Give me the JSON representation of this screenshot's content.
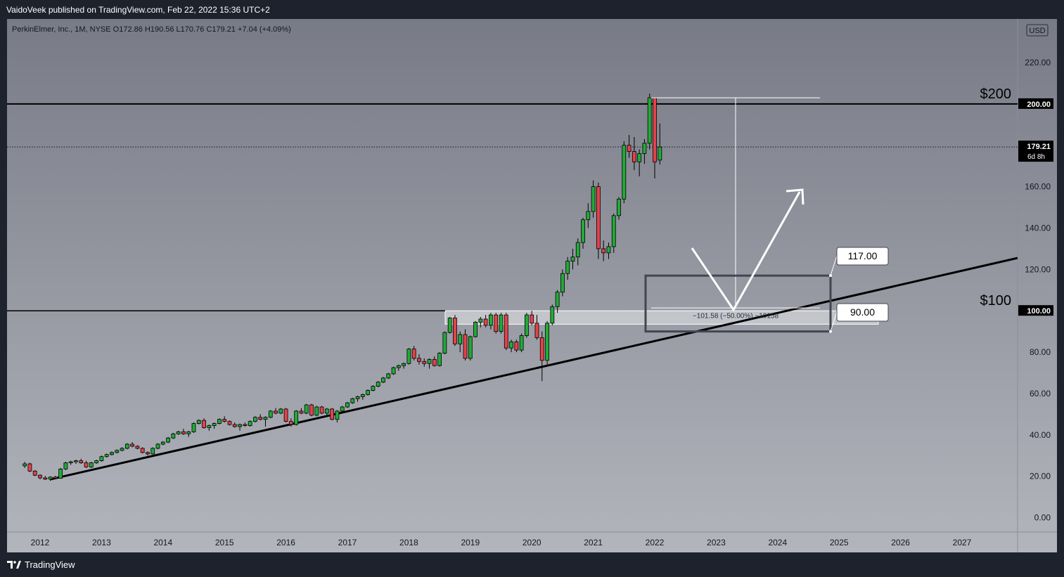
{
  "header": {
    "published": "VaidoVeek published on TradingView.com, Feb 22, 2022 15:36 UTC+2"
  },
  "footer": {
    "brand": "TradingView",
    "brand_icon": "tradingview-logo-icon"
  },
  "colors": {
    "up": "#22ab38",
    "down": "#e3434a",
    "wick": "#000000",
    "frame": "#1e222d"
  },
  "chart_data": {
    "type": "candlestick",
    "symbol_line": "PerkinElmer, Inc., 1M, NYSE  O172.86  H190.56  L170.76  C179.21  +7.04 (+4.09%)",
    "currency": "USD",
    "ylim": [
      -7,
      247
    ],
    "y_ticks": [
      "0.00",
      "20.00",
      "40.00",
      "60.00",
      "80.00",
      "100.00",
      "120.00",
      "140.00",
      "160.00",
      "180.00",
      "200.00",
      "220.00"
    ],
    "x_ticks": [
      "2012",
      "2013",
      "2014",
      "2015",
      "2016",
      "2017",
      "2018",
      "2019",
      "2020",
      "2021",
      "2022",
      "2023",
      "2024",
      "2025",
      "2026",
      "2027"
    ],
    "price_tag": {
      "price": "179.21",
      "countdown": "6d 8h"
    },
    "level_tags": [
      "200.00",
      "100.00"
    ],
    "annotations": {
      "level_200_label": "$200",
      "level_100_label": "$100",
      "box_top_label": "117.00",
      "box_bottom_label": "90.00",
      "measure_label": "−101.58 (−50.00%) −10158"
    },
    "levels": {
      "resistance": 200,
      "support": 100,
      "box_top": 117,
      "box_bottom": 90,
      "trendline_start": {
        "x": "2012-03",
        "y": 18.5
      },
      "trendline_slope_per_year": 6.8,
      "measure_from": 203,
      "measure_to": 101.4
    },
    "candles": [
      [
        "2011-10",
        25,
        27,
        24,
        26
      ],
      [
        "2011-11",
        26,
        26.5,
        22,
        22.5
      ],
      [
        "2011-12",
        22.5,
        23,
        20,
        20.5
      ],
      [
        "2012-01",
        20.5,
        21,
        18.5,
        19.2
      ],
      [
        "2012-02",
        19.2,
        20.2,
        18.2,
        18.6
      ],
      [
        "2012-03",
        18.6,
        20,
        17.8,
        19.6
      ],
      [
        "2012-04",
        19.6,
        20.2,
        18.5,
        19.0
      ],
      [
        "2012-05",
        19.0,
        24,
        18.8,
        23.5
      ],
      [
        "2012-06",
        23.5,
        27,
        23,
        26.5
      ],
      [
        "2012-07",
        26.5,
        27.5,
        25.5,
        27
      ],
      [
        "2012-08",
        27,
        28,
        26,
        27.5
      ],
      [
        "2012-09",
        27.5,
        28.5,
        26,
        26.5
      ],
      [
        "2012-10",
        26.5,
        27.5,
        24,
        24.5
      ],
      [
        "2012-11",
        24.5,
        27,
        24,
        26.5
      ],
      [
        "2012-12",
        26.5,
        28,
        26,
        27.5
      ],
      [
        "2013-01",
        27.5,
        30,
        27,
        29.5
      ],
      [
        "2013-02",
        29.5,
        31,
        29,
        30.5
      ],
      [
        "2013-03",
        30.5,
        32,
        30,
        31.5
      ],
      [
        "2013-04",
        31.5,
        33,
        31,
        32.5
      ],
      [
        "2013-05",
        32.5,
        34,
        32,
        33.5
      ],
      [
        "2013-06",
        33.5,
        36,
        33,
        35.5
      ],
      [
        "2013-07",
        35.5,
        36.5,
        34,
        34.5
      ],
      [
        "2013-08",
        34.5,
        35,
        33,
        33.5
      ],
      [
        "2013-09",
        33.5,
        34,
        31,
        31.5
      ],
      [
        "2013-10",
        31.5,
        32,
        30,
        30.8
      ],
      [
        "2013-11",
        30.8,
        34,
        30.5,
        33.5
      ],
      [
        "2013-12",
        33.5,
        36,
        33,
        35.5
      ],
      [
        "2014-01",
        35.5,
        37,
        35,
        36.5
      ],
      [
        "2014-02",
        36.5,
        39,
        36,
        38.5
      ],
      [
        "2014-03",
        38.5,
        41,
        38,
        40.5
      ],
      [
        "2014-04",
        40.5,
        42,
        40,
        41.5
      ],
      [
        "2014-05",
        41.5,
        43,
        40,
        40.5
      ],
      [
        "2014-06",
        40.5,
        42,
        39,
        41.5
      ],
      [
        "2014-07",
        41.5,
        46,
        41,
        45.5
      ],
      [
        "2014-08",
        45.5,
        47.5,
        45,
        47
      ],
      [
        "2014-09",
        47,
        48,
        43,
        43.5
      ],
      [
        "2014-10",
        43.5,
        45,
        42,
        44.5
      ],
      [
        "2014-11",
        44.5,
        46,
        43,
        45.5
      ],
      [
        "2014-12",
        45.5,
        48,
        45,
        47.5
      ],
      [
        "2015-01",
        47.5,
        49,
        46,
        46.5
      ],
      [
        "2015-02",
        46.5,
        47,
        44.5,
        45
      ],
      [
        "2015-03",
        45,
        46,
        43.5,
        44
      ],
      [
        "2015-04",
        44,
        45.5,
        42,
        45
      ],
      [
        "2015-05",
        45,
        46,
        44,
        44.5
      ],
      [
        "2015-06",
        44.5,
        47,
        44,
        46.5
      ],
      [
        "2015-07",
        46.5,
        49,
        46,
        48.5
      ],
      [
        "2015-08",
        48.5,
        50,
        47,
        47.5
      ],
      [
        "2015-09",
        47.5,
        49,
        44,
        48.5
      ],
      [
        "2015-10",
        48.5,
        52,
        48,
        51.5
      ],
      [
        "2015-11",
        51.5,
        53,
        50,
        50.5
      ],
      [
        "2015-12",
        50.5,
        53,
        50,
        52.5
      ],
      [
        "2016-01",
        52.5,
        53,
        46,
        46.5
      ],
      [
        "2016-02",
        46.5,
        48,
        44,
        45
      ],
      [
        "2016-03",
        45,
        52,
        44.5,
        51.5
      ],
      [
        "2016-04",
        51.5,
        53,
        50,
        50.5
      ],
      [
        "2016-05",
        50.5,
        55,
        50,
        54.5
      ],
      [
        "2016-06",
        54.5,
        55,
        49,
        49.5
      ],
      [
        "2016-07",
        49.5,
        54,
        49,
        53.5
      ],
      [
        "2016-08",
        53.5,
        54,
        50,
        50.5
      ],
      [
        "2016-09",
        50.5,
        53,
        49,
        52.5
      ],
      [
        "2016-10",
        52.5,
        53,
        47,
        47.5
      ],
      [
        "2016-11",
        47.5,
        52,
        46,
        51.5
      ],
      [
        "2016-12",
        51.5,
        54,
        51,
        53.5
      ],
      [
        "2017-01",
        53.5,
        56,
        53,
        55.5
      ],
      [
        "2017-02",
        55.5,
        58,
        55,
        57.5
      ],
      [
        "2017-03",
        57.5,
        59,
        56,
        58.5
      ],
      [
        "2017-04",
        58.5,
        60,
        57,
        59.5
      ],
      [
        "2017-05",
        59.5,
        62,
        59,
        61.5
      ],
      [
        "2017-06",
        61.5,
        64,
        61,
        63.5
      ],
      [
        "2017-07",
        63.5,
        66,
        63,
        65.5
      ],
      [
        "2017-08",
        65.5,
        68,
        65,
        67.5
      ],
      [
        "2017-09",
        67.5,
        70,
        67,
        69.5
      ],
      [
        "2017-10",
        69.5,
        73,
        69,
        72.5
      ],
      [
        "2017-11",
        72.5,
        74,
        71,
        73.5
      ],
      [
        "2017-12",
        73.5,
        75,
        72,
        74.5
      ],
      [
        "2018-01",
        74.5,
        82,
        74,
        81.5
      ],
      [
        "2018-02",
        81.5,
        83,
        76,
        77
      ],
      [
        "2018-03",
        77,
        79,
        74,
        75.5
      ],
      [
        "2018-04",
        75.5,
        77,
        73,
        74.5
      ],
      [
        "2018-05",
        74.5,
        77,
        72,
        76.5
      ],
      [
        "2018-06",
        76.5,
        78,
        73,
        73.5
      ],
      [
        "2018-07",
        73.5,
        80,
        73,
        79.5
      ],
      [
        "2018-08",
        79.5,
        90,
        79,
        89.5
      ],
      [
        "2018-09",
        89.5,
        97,
        89,
        96.5
      ],
      [
        "2018-10",
        96.5,
        98,
        83,
        84
      ],
      [
        "2018-11",
        84,
        90,
        80,
        88.5
      ],
      [
        "2018-12",
        88.5,
        91,
        76,
        77
      ],
      [
        "2019-01",
        77,
        88,
        76,
        87.5
      ],
      [
        "2019-02",
        87.5,
        95,
        87,
        94.5
      ],
      [
        "2019-03",
        94.5,
        97,
        92,
        96
      ],
      [
        "2019-04",
        96,
        98,
        92,
        93
      ],
      [
        "2019-05",
        93,
        99,
        91,
        98
      ],
      [
        "2019-06",
        98,
        99,
        89,
        90
      ],
      [
        "2019-07",
        90,
        99,
        89,
        98
      ],
      [
        "2019-08",
        98,
        99,
        81,
        82
      ],
      [
        "2019-09",
        82,
        86,
        80,
        85
      ],
      [
        "2019-10",
        85,
        86,
        80,
        81
      ],
      [
        "2019-11",
        81,
        89,
        80,
        88
      ],
      [
        "2019-12",
        88,
        99,
        87,
        98
      ],
      [
        "2020-01",
        98,
        100,
        93,
        94
      ],
      [
        "2020-02",
        94,
        98,
        86,
        87
      ],
      [
        "2020-03",
        87,
        90,
        66,
        76
      ],
      [
        "2020-04",
        76,
        95,
        74,
        94
      ],
      [
        "2020-05",
        94,
        103,
        93,
        102
      ],
      [
        "2020-06",
        102,
        110,
        99,
        109
      ],
      [
        "2020-07",
        109,
        120,
        107,
        118
      ],
      [
        "2020-08",
        118,
        126,
        115,
        124
      ],
      [
        "2020-09",
        124,
        130,
        120,
        126
      ],
      [
        "2020-10",
        126,
        135,
        122,
        133
      ],
      [
        "2020-11",
        133,
        145,
        130,
        144
      ],
      [
        "2020-12",
        144,
        152,
        140,
        148
      ],
      [
        "2021-01",
        148,
        163,
        145,
        160
      ],
      [
        "2021-02",
        160,
        162,
        125,
        130
      ],
      [
        "2021-03",
        130,
        134,
        124,
        128
      ],
      [
        "2021-04",
        128,
        133,
        125,
        131
      ],
      [
        "2021-05",
        131,
        147,
        128,
        146
      ],
      [
        "2021-06",
        146,
        155,
        144,
        154
      ],
      [
        "2021-07",
        154,
        182,
        152,
        180
      ],
      [
        "2021-08",
        180,
        185,
        174,
        177
      ],
      [
        "2021-09",
        177,
        184,
        168,
        172
      ],
      [
        "2021-10",
        172,
        178,
        165,
        176
      ],
      [
        "2021-11",
        176,
        183,
        171,
        181
      ],
      [
        "2021-12",
        181,
        205,
        178,
        203
      ],
      [
        "2022-01",
        203,
        203,
        164,
        172
      ],
      [
        "2022-02",
        172.86,
        190.56,
        170.76,
        179.21
      ]
    ]
  }
}
